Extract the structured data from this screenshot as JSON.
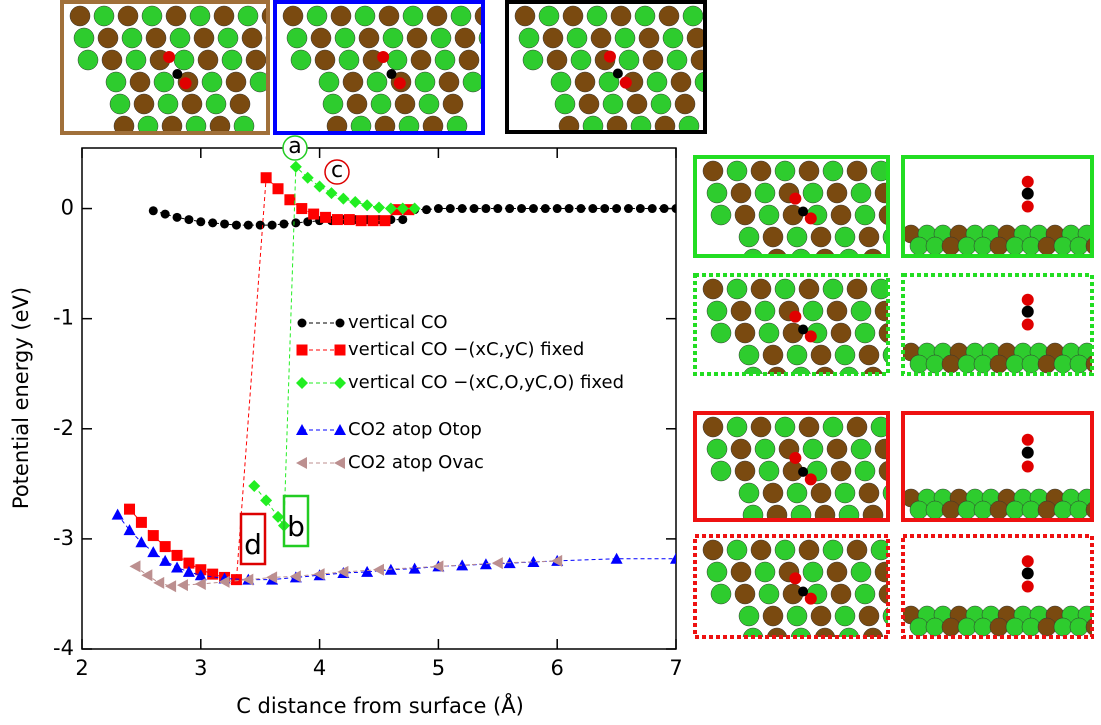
{
  "chart_data": {
    "type": "line",
    "xlabel": "C distance from surface (Å)",
    "ylabel": "Potential energy (eV)",
    "xlim": [
      2,
      7
    ],
    "ylim": [
      -4,
      0.55
    ],
    "xticks": [
      2,
      3,
      4,
      5,
      6,
      7
    ],
    "yticks": [
      -4,
      -3,
      -2,
      -1,
      0
    ],
    "series": [
      {
        "name": "vertical CO",
        "color": "#000000",
        "marker": "circle",
        "x": [
          2.6,
          2.7,
          2.8,
          2.9,
          3.0,
          3.1,
          3.2,
          3.3,
          3.4,
          3.5,
          3.6,
          3.7,
          3.8,
          3.9,
          4.0,
          4.1,
          4.2,
          4.3,
          4.4,
          4.5,
          4.6,
          4.7,
          4.8,
          4.9,
          5.0,
          5.1,
          5.2,
          5.3,
          5.4,
          5.5,
          5.6,
          5.7,
          5.8,
          5.9,
          6.0,
          6.1,
          6.2,
          6.3,
          6.4,
          6.5,
          6.6,
          6.7,
          6.8,
          6.9,
          7.0
        ],
        "values": [
          -0.02,
          -0.05,
          -0.08,
          -0.1,
          -0.12,
          -0.13,
          -0.14,
          -0.15,
          -0.15,
          -0.15,
          -0.15,
          -0.14,
          -0.13,
          -0.12,
          -0.11,
          -0.11,
          -0.1,
          -0.1,
          -0.1,
          -0.1,
          -0.1,
          -0.1,
          -0.01,
          -0.01,
          0,
          0,
          0,
          0,
          0,
          0,
          0,
          0,
          0,
          0,
          0,
          0,
          0,
          0,
          0,
          0,
          0,
          0,
          0,
          0,
          0
        ]
      },
      {
        "name": "vertical CO −(xC,yC) fixed",
        "color": "#ff0000",
        "marker": "square",
        "x": [
          2.4,
          2.5,
          2.6,
          2.7,
          2.8,
          2.9,
          3.0,
          3.1,
          3.2,
          3.3,
          3.55,
          3.65,
          3.75,
          3.85,
          3.95,
          4.05,
          4.15,
          4.25,
          4.35,
          4.45,
          4.55,
          4.65,
          4.75
        ],
        "values": [
          -2.73,
          -2.85,
          -2.97,
          -3.07,
          -3.15,
          -3.22,
          -3.28,
          -3.32,
          -3.35,
          -3.37,
          0.28,
          0.18,
          0.08,
          0.0,
          -0.05,
          -0.08,
          -0.1,
          -0.1,
          -0.11,
          -0.11,
          -0.11,
          -0.01,
          -0.01
        ]
      },
      {
        "name": "vertical CO −(xC,O,yC,O) fixed",
        "color": "#22ee22",
        "marker": "diamond",
        "x": [
          3.45,
          3.55,
          3.65,
          3.7,
          3.8,
          3.9,
          4.0,
          4.1,
          4.2,
          4.3,
          4.4,
          4.5,
          4.6,
          4.7,
          4.8
        ],
        "values": [
          -2.52,
          -2.65,
          -2.8,
          -2.88,
          0.38,
          0.28,
          0.2,
          0.14,
          0.09,
          0.06,
          0.03,
          0.01,
          0,
          0,
          0
        ]
      },
      {
        "name": "CO2 atop Otop",
        "color": "#0000ff",
        "marker": "triangle",
        "x": [
          2.3,
          2.4,
          2.5,
          2.6,
          2.7,
          2.8,
          2.9,
          3.0,
          3.2,
          3.4,
          3.6,
          3.8,
          4.0,
          4.2,
          4.4,
          4.6,
          4.8,
          5.0,
          5.2,
          5.4,
          5.6,
          5.8,
          6.0,
          6.5,
          7.0
        ],
        "values": [
          -2.78,
          -2.92,
          -3.03,
          -3.12,
          -3.2,
          -3.26,
          -3.3,
          -3.33,
          -3.36,
          -3.37,
          -3.37,
          -3.35,
          -3.33,
          -3.31,
          -3.3,
          -3.28,
          -3.27,
          -3.25,
          -3.24,
          -3.23,
          -3.22,
          -3.21,
          -3.2,
          -3.18,
          -3.18
        ]
      },
      {
        "name": "CO2 atop Ovac",
        "color": "#bc8f8f",
        "marker": "tri-left",
        "x": [
          2.45,
          2.55,
          2.65,
          2.75,
          2.85,
          3.0,
          3.2,
          3.4,
          3.6,
          3.8,
          4.0,
          4.2,
          4.5,
          5.0,
          5.5,
          6.0
        ],
        "values": [
          -3.25,
          -3.33,
          -3.4,
          -3.43,
          -3.42,
          -3.41,
          -3.39,
          -3.37,
          -3.35,
          -3.34,
          -3.32,
          -3.3,
          -3.28,
          -3.25,
          -3.22,
          -3.2
        ]
      }
    ],
    "annotations": [
      {
        "text": "c",
        "color": "#dd0000",
        "shape": "circle"
      },
      {
        "text": "a",
        "color": "#22cc22",
        "shape": "circle"
      },
      {
        "text": "d",
        "color": "#dd0000",
        "shape": "box"
      },
      {
        "text": "b",
        "color": "#22cc22",
        "shape": "box"
      }
    ]
  },
  "panels": [
    {
      "label": "a"
    },
    {
      "label": "a"
    },
    {
      "label": "b"
    },
    {
      "label": "b"
    },
    {
      "label": "c"
    },
    {
      "label": "c"
    },
    {
      "label": "d"
    },
    {
      "label": "d"
    }
  ]
}
